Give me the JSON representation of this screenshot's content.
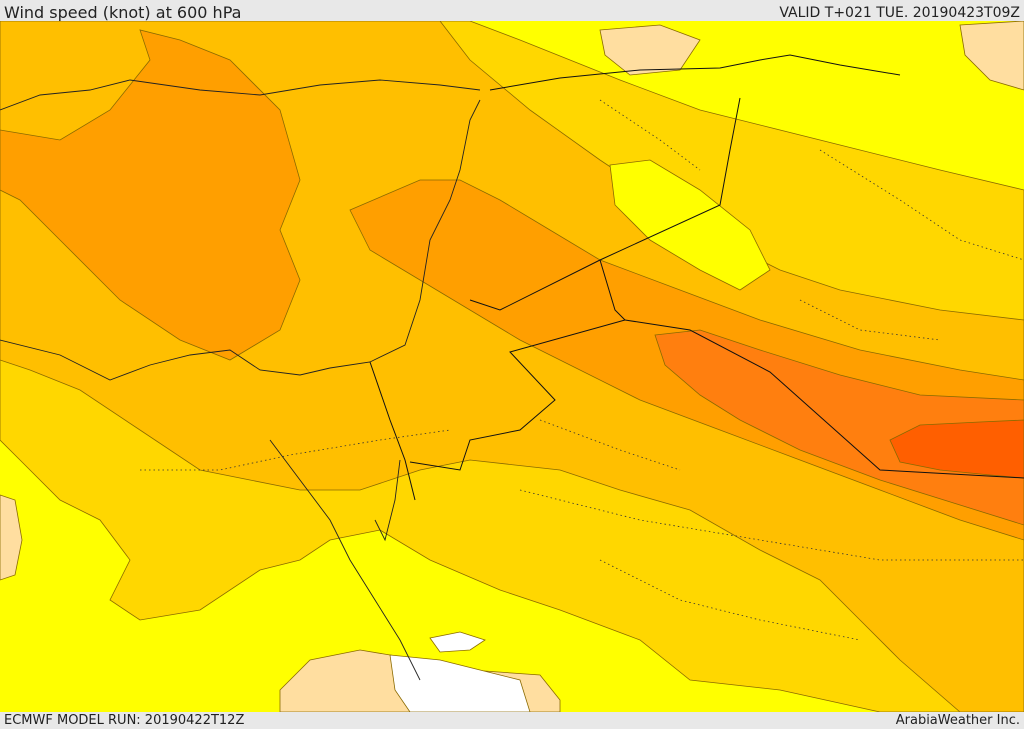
{
  "header": {
    "title": "Wind speed (knot) at 600 hPa",
    "valid": "VALID T+021 TUE. 20190423T09Z"
  },
  "footer": {
    "model_run": "ECMWF MODEL RUN: 20190422T12Z",
    "credit": "ArabiaWeather Inc."
  },
  "colors": {
    "lt_10": "#ffffff",
    "wheat": "#ffdea0",
    "yellow": "#ffff00",
    "gold": "#ffd700",
    "amber": "#ffbf00",
    "orange": "#ff9f00",
    "dark_orange": "#ff7f0f",
    "red_orange": "#ff5f00"
  }
}
